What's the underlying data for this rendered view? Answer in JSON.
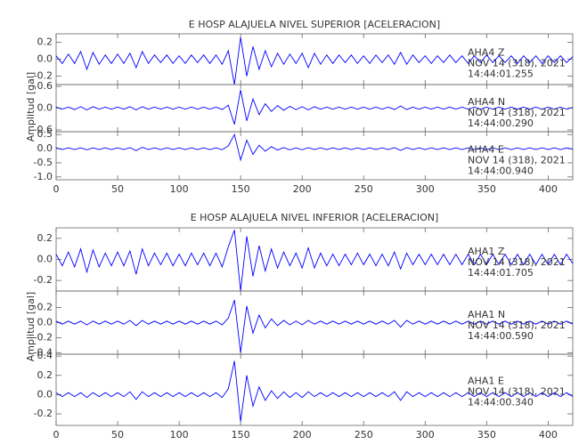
{
  "chart_data": [
    {
      "type": "line",
      "title": "E HOSP ALAJUELA NIVEL SUPERIOR [ACELERACION]",
      "ylabel": "Amplitud [gal]",
      "xlim": [
        0,
        420
      ],
      "xticks": [
        0,
        50,
        100,
        150,
        200,
        250,
        300,
        350,
        400
      ],
      "x": [
        0,
        5,
        10,
        15,
        20,
        25,
        30,
        35,
        40,
        45,
        50,
        55,
        60,
        65,
        70,
        75,
        80,
        85,
        90,
        95,
        100,
        105,
        110,
        115,
        120,
        125,
        130,
        135,
        140,
        145,
        150,
        155,
        160,
        165,
        170,
        175,
        180,
        185,
        190,
        195,
        200,
        205,
        210,
        215,
        220,
        225,
        230,
        235,
        240,
        245,
        250,
        255,
        260,
        265,
        270,
        275,
        280,
        285,
        290,
        295,
        300,
        305,
        310,
        315,
        320,
        325,
        330,
        335,
        340,
        345,
        350,
        355,
        360,
        365,
        370,
        375,
        380,
        385,
        390,
        395,
        400,
        405,
        410,
        415,
        420
      ],
      "panels": [
        {
          "label": [
            "AHA4   Z",
            "NOV 14 (318), 2021",
            "14:44:01.255"
          ],
          "color": "#0000ff",
          "ylim": [
            -0.3,
            0.3
          ],
          "yticks": [
            -0.2,
            {
              "value": 0,
              "label": "0.0"
            },
            0.2
          ],
          "values": [
            0.04,
            -0.05,
            0.06,
            -0.05,
            0.09,
            -0.12,
            0.08,
            -0.06,
            0.05,
            -0.05,
            0.06,
            -0.05,
            0.07,
            -0.1,
            0.09,
            -0.05,
            0.05,
            -0.04,
            0.05,
            -0.05,
            0.04,
            -0.05,
            0.05,
            -0.04,
            0.05,
            -0.05,
            0.05,
            -0.06,
            0.1,
            -0.3,
            0.26,
            -0.2,
            0.15,
            -0.12,
            0.1,
            -0.09,
            0.07,
            -0.06,
            0.06,
            -0.05,
            0.07,
            -0.1,
            0.07,
            -0.06,
            0.05,
            -0.05,
            0.05,
            -0.04,
            0.05,
            -0.05,
            0.04,
            -0.05,
            0.05,
            -0.04,
            0.05,
            -0.06,
            0.08,
            -0.06,
            0.05,
            -0.04,
            0.04,
            -0.05,
            0.04,
            -0.04,
            0.05,
            -0.04,
            0.04,
            -0.05,
            0.04,
            -0.04,
            0.05,
            -0.04,
            0.04,
            -0.04,
            0.04,
            -0.05,
            0.04,
            -0.04,
            0.04,
            -0.05,
            0.04,
            -0.04,
            0.04,
            -0.04,
            0.03
          ]
        },
        {
          "label": [
            "AHA4   N",
            "NOV 14 (318), 2021",
            "14:44:00.290"
          ],
          "color": "#0000ff",
          "ylim": [
            -0.65,
            0.65
          ],
          "yticks": [
            -0.6,
            {
              "value": 0,
              "label": "0.0"
            },
            0.6
          ],
          "values": [
            0.03,
            -0.03,
            0.03,
            -0.04,
            0.04,
            -0.05,
            0.04,
            -0.03,
            0.03,
            -0.03,
            0.03,
            -0.03,
            0.04,
            -0.05,
            0.04,
            -0.03,
            0.03,
            -0.03,
            0.03,
            -0.03,
            0.03,
            -0.03,
            0.03,
            -0.03,
            0.03,
            -0.03,
            0.03,
            -0.04,
            0.08,
            -0.45,
            0.5,
            -0.35,
            0.25,
            -0.18,
            0.12,
            -0.09,
            0.07,
            -0.06,
            0.05,
            -0.04,
            0.04,
            -0.05,
            0.04,
            -0.03,
            0.03,
            -0.03,
            0.03,
            -0.03,
            0.03,
            -0.03,
            0.03,
            -0.03,
            0.03,
            -0.03,
            0.03,
            -0.04,
            0.06,
            -0.04,
            0.03,
            -0.03,
            0.03,
            -0.03,
            0.03,
            -0.03,
            0.03,
            -0.03,
            0.03,
            -0.03,
            0.03,
            -0.03,
            0.03,
            -0.03,
            0.03,
            -0.03,
            0.03,
            -0.03,
            0.03,
            -0.03,
            0.03,
            -0.03,
            0.03,
            -0.03,
            0.03,
            -0.03,
            0.02
          ]
        },
        {
          "label": [
            "AHA4   E",
            "NOV 14 (318), 2021",
            "14:44:00.940"
          ],
          "color": "#0000ff",
          "ylim": [
            -1.1,
            0.6
          ],
          "yticks": [
            {
              "value": -1,
              "label": "-1.0"
            },
            -0.5,
            {
              "value": 0,
              "label": "0.0"
            },
            0.5
          ],
          "values": [
            0.03,
            -0.03,
            0.03,
            -0.03,
            0.03,
            -0.04,
            0.03,
            -0.03,
            0.03,
            -0.03,
            0.03,
            -0.03,
            0.04,
            -0.07,
            0.05,
            -0.03,
            0.03,
            -0.03,
            0.03,
            -0.03,
            0.03,
            -0.03,
            0.03,
            -0.03,
            0.03,
            -0.03,
            0.03,
            -0.04,
            0.1,
            0.5,
            -0.4,
            0.3,
            -0.2,
            0.12,
            -0.09,
            0.07,
            -0.05,
            0.04,
            -0.04,
            0.03,
            -0.04,
            0.04,
            -0.03,
            0.03,
            -0.03,
            0.03,
            -0.03,
            0.03,
            -0.03,
            0.03,
            -0.03,
            0.03,
            -0.03,
            0.03,
            -0.03,
            0.04,
            -0.06,
            0.04,
            -0.03,
            0.03,
            -0.03,
            0.03,
            -0.03,
            0.03,
            -0.03,
            0.03,
            -0.03,
            0.03,
            -0.03,
            0.03,
            -0.03,
            0.03,
            -0.03,
            0.03,
            -0.03,
            0.03,
            -0.03,
            0.03,
            -0.03,
            0.03,
            -0.03,
            0.03,
            -0.03,
            0.03,
            -0.02
          ]
        }
      ]
    },
    {
      "type": "line",
      "title": "E HOSP ALAJUELA NIVEL INFERIOR [ACELERACION]",
      "ylabel": "Amplitud [gal]",
      "xlim": [
        0,
        420
      ],
      "xticks": [
        0,
        50,
        100,
        150,
        200,
        250,
        300,
        350,
        400
      ],
      "x": [
        0,
        5,
        10,
        15,
        20,
        25,
        30,
        35,
        40,
        45,
        50,
        55,
        60,
        65,
        70,
        75,
        80,
        85,
        90,
        95,
        100,
        105,
        110,
        115,
        120,
        125,
        130,
        135,
        140,
        145,
        150,
        155,
        160,
        165,
        170,
        175,
        180,
        185,
        190,
        195,
        200,
        205,
        210,
        215,
        220,
        225,
        230,
        235,
        240,
        245,
        250,
        255,
        260,
        265,
        270,
        275,
        280,
        285,
        290,
        295,
        300,
        305,
        310,
        315,
        320,
        325,
        330,
        335,
        340,
        345,
        350,
        355,
        360,
        365,
        370,
        375,
        380,
        385,
        390,
        395,
        400,
        405,
        410,
        415,
        420
      ],
      "panels": [
        {
          "label": [
            "AHA1   Z",
            "NOV 14 (318), 2021",
            "14:44:01.705"
          ],
          "color": "#0000ff",
          "ylim": [
            -0.3,
            0.3
          ],
          "yticks": [
            -0.2,
            {
              "value": 0,
              "label": "0.0"
            },
            0.2
          ],
          "values": [
            0.05,
            -0.06,
            0.07,
            -0.07,
            0.1,
            -0.12,
            0.09,
            -0.07,
            0.06,
            -0.06,
            0.07,
            -0.06,
            0.08,
            -0.14,
            0.1,
            -0.06,
            0.06,
            -0.05,
            0.06,
            -0.06,
            0.05,
            -0.06,
            0.06,
            -0.05,
            0.06,
            -0.06,
            0.06,
            -0.07,
            0.12,
            0.28,
            -0.3,
            0.22,
            -0.16,
            0.13,
            -0.11,
            0.1,
            -0.08,
            0.07,
            -0.06,
            0.06,
            -0.08,
            0.11,
            -0.08,
            0.06,
            -0.06,
            0.05,
            -0.06,
            0.05,
            -0.05,
            0.06,
            -0.05,
            0.05,
            -0.06,
            0.05,
            -0.06,
            0.07,
            -0.09,
            0.06,
            -0.05,
            0.05,
            -0.05,
            0.05,
            -0.05,
            0.05,
            -0.05,
            0.05,
            -0.05,
            0.05,
            -0.05,
            0.05,
            -0.05,
            0.05,
            -0.05,
            0.05,
            -0.05,
            0.05,
            -0.05,
            0.05,
            -0.05,
            0.05,
            -0.05,
            0.05,
            -0.05,
            0.05,
            -0.04
          ]
        },
        {
          "label": [
            "AHA1   N",
            "NOV 14 (318), 2021",
            "14:44:00.590"
          ],
          "color": "#0000ff",
          "ylim": [
            -0.42,
            0.42
          ],
          "yticks": [
            -0.4,
            -0.2,
            {
              "value": 0,
              "label": "0.0"
            },
            0.2
          ],
          "values": [
            0.02,
            -0.02,
            0.02,
            -0.02,
            0.02,
            -0.03,
            0.02,
            -0.02,
            0.02,
            -0.02,
            0.02,
            -0.02,
            0.03,
            -0.04,
            0.03,
            -0.02,
            0.02,
            -0.02,
            0.02,
            -0.02,
            0.02,
            -0.02,
            0.02,
            -0.02,
            0.02,
            -0.02,
            0.02,
            -0.03,
            0.06,
            0.3,
            -0.4,
            0.22,
            -0.14,
            0.1,
            -0.07,
            0.05,
            -0.04,
            0.03,
            -0.03,
            0.02,
            -0.03,
            0.03,
            -0.02,
            0.02,
            -0.02,
            0.02,
            -0.02,
            0.02,
            -0.02,
            0.02,
            -0.02,
            0.02,
            -0.02,
            0.02,
            -0.02,
            0.03,
            -0.06,
            0.03,
            -0.02,
            0.02,
            -0.02,
            0.02,
            -0.02,
            0.02,
            -0.02,
            0.02,
            -0.02,
            0.02,
            -0.02,
            0.02,
            -0.02,
            0.02,
            -0.02,
            0.02,
            -0.02,
            0.02,
            -0.02,
            0.02,
            -0.02,
            0.02,
            -0.02,
            0.02,
            -0.02,
            0.02,
            -0.02
          ]
        },
        {
          "label": [
            "AHA1   E",
            "NOV 14 (318), 2021",
            "14:44:00.340"
          ],
          "color": "#0000ff",
          "ylim": [
            -0.32,
            0.42
          ],
          "yticks": [
            -0.2,
            {
              "value": 0,
              "label": "0.0"
            },
            0.2,
            0.4
          ],
          "values": [
            0.02,
            -0.02,
            0.02,
            -0.02,
            0.02,
            -0.03,
            0.02,
            -0.02,
            0.02,
            -0.02,
            0.02,
            -0.02,
            0.03,
            -0.05,
            0.03,
            -0.02,
            0.02,
            -0.02,
            0.02,
            -0.02,
            0.02,
            -0.02,
            0.02,
            -0.02,
            0.02,
            -0.02,
            0.02,
            -0.03,
            0.06,
            0.35,
            -0.28,
            0.2,
            -0.12,
            0.08,
            -0.06,
            0.04,
            -0.04,
            0.03,
            -0.03,
            0.02,
            -0.03,
            0.03,
            -0.02,
            0.02,
            -0.02,
            0.02,
            -0.02,
            0.02,
            -0.02,
            0.02,
            -0.02,
            0.02,
            -0.02,
            0.02,
            -0.02,
            0.03,
            -0.06,
            0.03,
            -0.02,
            0.02,
            -0.02,
            0.02,
            -0.02,
            0.02,
            -0.02,
            0.02,
            -0.02,
            0.02,
            -0.02,
            0.02,
            -0.02,
            0.02,
            -0.02,
            0.02,
            -0.02,
            0.02,
            -0.02,
            0.02,
            -0.02,
            0.02,
            -0.02,
            0.02,
            -0.02,
            0.02,
            -0.02
          ]
        }
      ]
    }
  ]
}
